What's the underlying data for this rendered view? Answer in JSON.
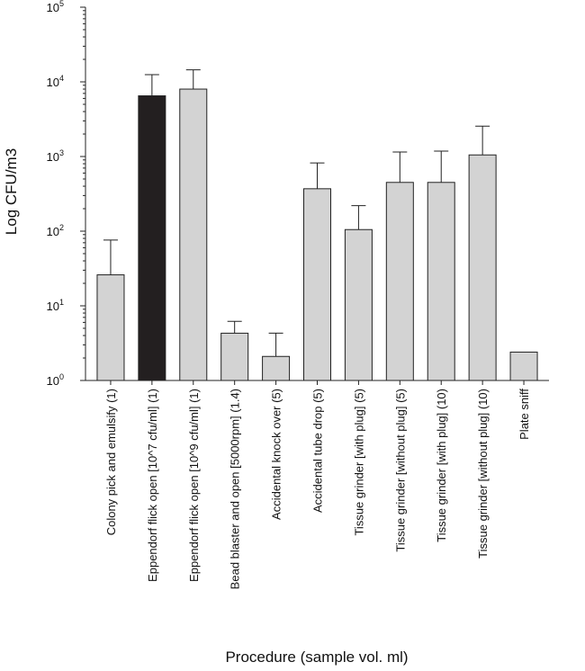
{
  "chart_data": {
    "type": "bar",
    "title": "",
    "xlabel": "Procedure (sample vol. ml)",
    "ylabel": "Log CFU/m3",
    "yscale": "log",
    "ylim": [
      1,
      100000
    ],
    "yticks": [
      {
        "base": "10",
        "exp": "0"
      },
      {
        "base": "10",
        "exp": "1"
      },
      {
        "base": "10",
        "exp": "2"
      },
      {
        "base": "10",
        "exp": "3"
      },
      {
        "base": "10",
        "exp": "4"
      },
      {
        "base": "10",
        "exp": "5"
      }
    ],
    "grid": false,
    "legend": "none",
    "categories": [
      "Colony pick and emulsify (1)",
      "Eppendorf flick open [10^7 cfu/ml] (1)",
      "Eppendorf flick open [10^9 cfu/ml] (1)",
      "Bead blaster and open [5000rpm] (1.4)",
      "Accidental knock over (5)",
      "Accidental tube drop (5)",
      "Tissue grinder [with plug] (5)",
      "Tissue grinder [without plug] (5)",
      "Tissue grinder [with plug] (10)",
      "Tissue grinder [without plug] (10)",
      "Plate sniff"
    ],
    "values": [
      26,
      6500,
      8000,
      4.3,
      2.1,
      370,
      105,
      450,
      450,
      1050,
      2.4
    ],
    "error_upper": [
      76,
      12500,
      14500,
      6.2,
      4.3,
      820,
      220,
      1150,
      1180,
      2550,
      null
    ],
    "colors": [
      "#d3d3d3",
      "#231f20",
      "#d3d3d3",
      "#d3d3d3",
      "#d3d3d3",
      "#d3d3d3",
      "#d3d3d3",
      "#d3d3d3",
      "#d3d3d3",
      "#d3d3d3",
      "#d3d3d3"
    ]
  }
}
